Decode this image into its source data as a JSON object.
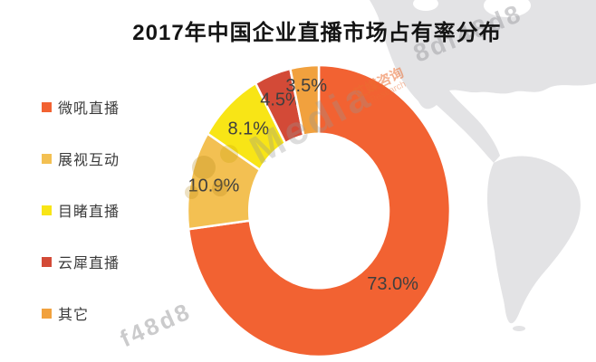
{
  "title": "2017年中国企业直播市场占有率分布",
  "chart_data": {
    "type": "pie",
    "subtype": "donut",
    "title": "2017年中国企业直播市场占有率分布",
    "unit": "%",
    "categories": [
      "微吼直播",
      "展视互动",
      "目睹直播",
      "云犀直播",
      "其它"
    ],
    "values": [
      73.0,
      10.9,
      8.1,
      4.5,
      3.5
    ],
    "labels": [
      "73.0%",
      "10.9%",
      "8.1%",
      "4.5%",
      "3.5%"
    ],
    "colors": [
      "#F26232",
      "#F3C052",
      "#F8E516",
      "#D34A37",
      "#F1A13E"
    ],
    "label_color": "#3F3F3F",
    "legend_position": "left",
    "start_angle_deg": 0,
    "direction": "clockwise",
    "inner_radius_ratio": 0.53,
    "label_radius_factors": [
      0.75,
      0.82,
      0.78,
      0.82,
      0.87
    ],
    "slice_gap_color": "#FFFFFF"
  },
  "watermarks": {
    "top_right": "8df48d8",
    "bottom_left": "f48d8",
    "brand": "Media",
    "brand_cn": "艾媒咨询",
    "brand_en": "Research"
  },
  "map": {
    "name": "americas-silhouette",
    "color": "#E3E3E5"
  }
}
